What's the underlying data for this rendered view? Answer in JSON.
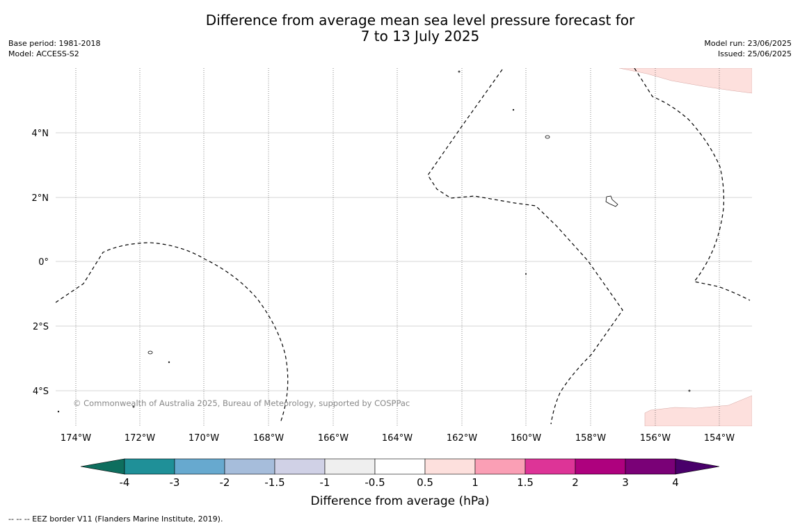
{
  "title": {
    "line1": "Difference from average mean sea level pressure forecast for",
    "line2": "7 to 13 July 2025"
  },
  "meta": {
    "base_period": "Base period: 1981-2018",
    "model": "Model: ACCESS-S2",
    "model_run": "Model run: 23/06/2025",
    "issued": "Issued: 25/06/2025"
  },
  "map": {
    "lon_ticks": [
      "174°W",
      "172°W",
      "170°W",
      "168°W",
      "166°W",
      "164°W",
      "162°W",
      "160°W",
      "158°W",
      "156°W",
      "154°W"
    ],
    "lat_ticks": [
      "4°N",
      "2°N",
      "0°",
      "2°S",
      "4°S"
    ],
    "copyright": "© Commonwealth of Australia 2025, Bureau of Meteorology, supported by COSPPac"
  },
  "colorbar": {
    "ticks": [
      "-4",
      "-3",
      "-2",
      "-1.5",
      "-1",
      "-0.5",
      "0.5",
      "1",
      "1.5",
      "2",
      "3",
      "4"
    ],
    "colors": [
      "#0e6e5e",
      "#1f9098",
      "#67a9cf",
      "#a6bddb",
      "#d0d1e6",
      "#efefef",
      "#ffffff",
      "#fde0dd",
      "#fa9fb5",
      "#dd3497",
      "#ae017e",
      "#7a0177",
      "#49006a"
    ],
    "label": "Difference from average (hPa)"
  },
  "footer": {
    "legend": "--  --  -- EEZ border V11 (Flanders Marine Institute, 2019)."
  }
}
